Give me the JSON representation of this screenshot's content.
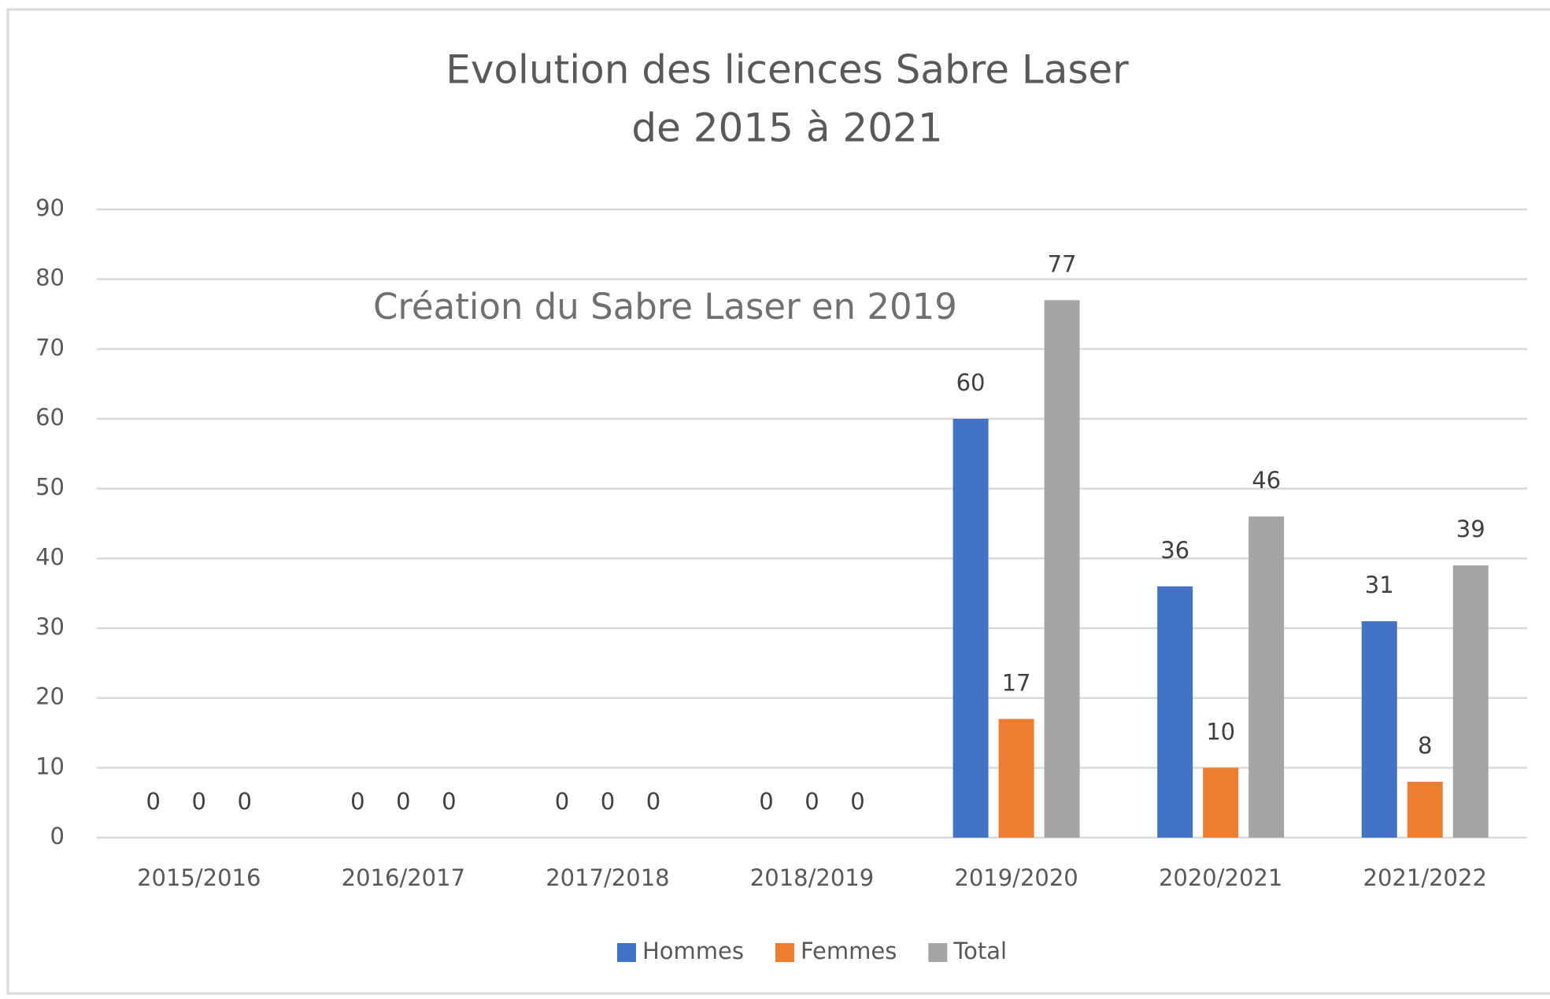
{
  "chart_data": {
    "type": "bar",
    "title": [
      "Evolution des licences Sabre Laser",
      "de 2015 à 2021"
    ],
    "annotation": "Création du Sabre Laser en 2019",
    "categories": [
      "2015/2016",
      "2016/2017",
      "2017/2018",
      "2018/2019",
      "2019/2020",
      "2020/2021",
      "2021/2022"
    ],
    "series": [
      {
        "name": "Hommes",
        "color": "#4472c4",
        "values": [
          0,
          0,
          0,
          0,
          60,
          36,
          31
        ]
      },
      {
        "name": "Femmes",
        "color": "#ed7d31",
        "values": [
          0,
          0,
          0,
          0,
          17,
          10,
          8
        ]
      },
      {
        "name": "Total",
        "color": "#a5a5a5",
        "values": [
          0,
          0,
          0,
          0,
          77,
          46,
          39
        ]
      }
    ],
    "ylim": [
      0,
      90
    ],
    "yticks": [
      0,
      10,
      20,
      30,
      40,
      50,
      60,
      70,
      80,
      90
    ],
    "grid": true,
    "legend": "bottom"
  }
}
